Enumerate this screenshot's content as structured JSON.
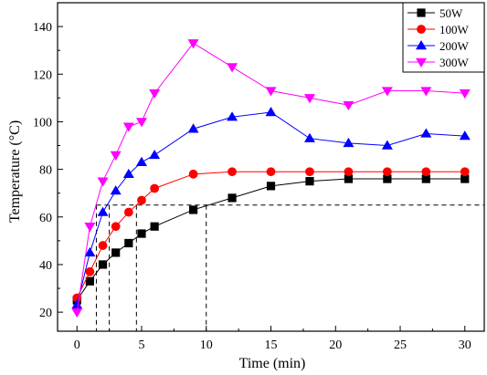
{
  "chart_data": {
    "type": "line",
    "title": "",
    "xlabel": "Time (min)",
    "ylabel": "Temperature (°C)",
    "xlim": [
      -1.5,
      31.5
    ],
    "ylim": [
      12,
      150
    ],
    "xticks": [
      0,
      5,
      10,
      15,
      20,
      25,
      30
    ],
    "yticks": [
      20,
      40,
      60,
      80,
      100,
      120,
      140
    ],
    "xtick_labels": [
      "0",
      "5",
      "10",
      "15",
      "20",
      "25",
      "30"
    ],
    "ytick_labels": [
      "20",
      "40",
      "60",
      "80",
      "100",
      "120",
      "140"
    ],
    "grid": false,
    "legend_position": "top-right",
    "series": [
      {
        "name": "50W",
        "color": "#000000",
        "marker": "square",
        "x": [
          0,
          1,
          2,
          3,
          4,
          5,
          6,
          9,
          12,
          15,
          18,
          21,
          24,
          27,
          30
        ],
        "y": [
          25,
          33,
          40,
          45,
          49,
          53,
          56,
          63,
          68,
          73,
          75,
          76,
          76,
          76,
          76
        ]
      },
      {
        "name": "100W",
        "color": "#ff0000",
        "marker": "circle",
        "x": [
          0,
          1,
          2,
          3,
          4,
          5,
          6,
          9,
          12,
          15,
          18,
          21,
          24,
          27,
          30
        ],
        "y": [
          26,
          37,
          48,
          56,
          62,
          67,
          72,
          78,
          79,
          79,
          79,
          79,
          79,
          79,
          79
        ]
      },
      {
        "name": "200W",
        "color": "#0000ff",
        "marker": "triangle-up",
        "x": [
          0,
          1,
          2,
          3,
          4,
          5,
          6,
          9,
          12,
          15,
          18,
          21,
          24,
          27,
          30
        ],
        "y": [
          23,
          45,
          62,
          71,
          78,
          83,
          86,
          97,
          102,
          104,
          93,
          91,
          90,
          95,
          94
        ]
      },
      {
        "name": "300W",
        "color": "#ff00ff",
        "marker": "triangle-down",
        "x": [
          0,
          1,
          2,
          3,
          4,
          5,
          6,
          9,
          12,
          15,
          18,
          21,
          24,
          27,
          30
        ],
        "y": [
          20,
          56,
          75,
          86,
          98,
          100,
          112,
          133,
          123,
          113,
          110,
          107,
          113,
          113,
          112
        ]
      }
    ],
    "reference_lines": {
      "color": "#000000",
      "style": "dashed",
      "horizontal_y": 65,
      "vertical_x": [
        1.5,
        2.5,
        4.6,
        10
      ]
    }
  }
}
